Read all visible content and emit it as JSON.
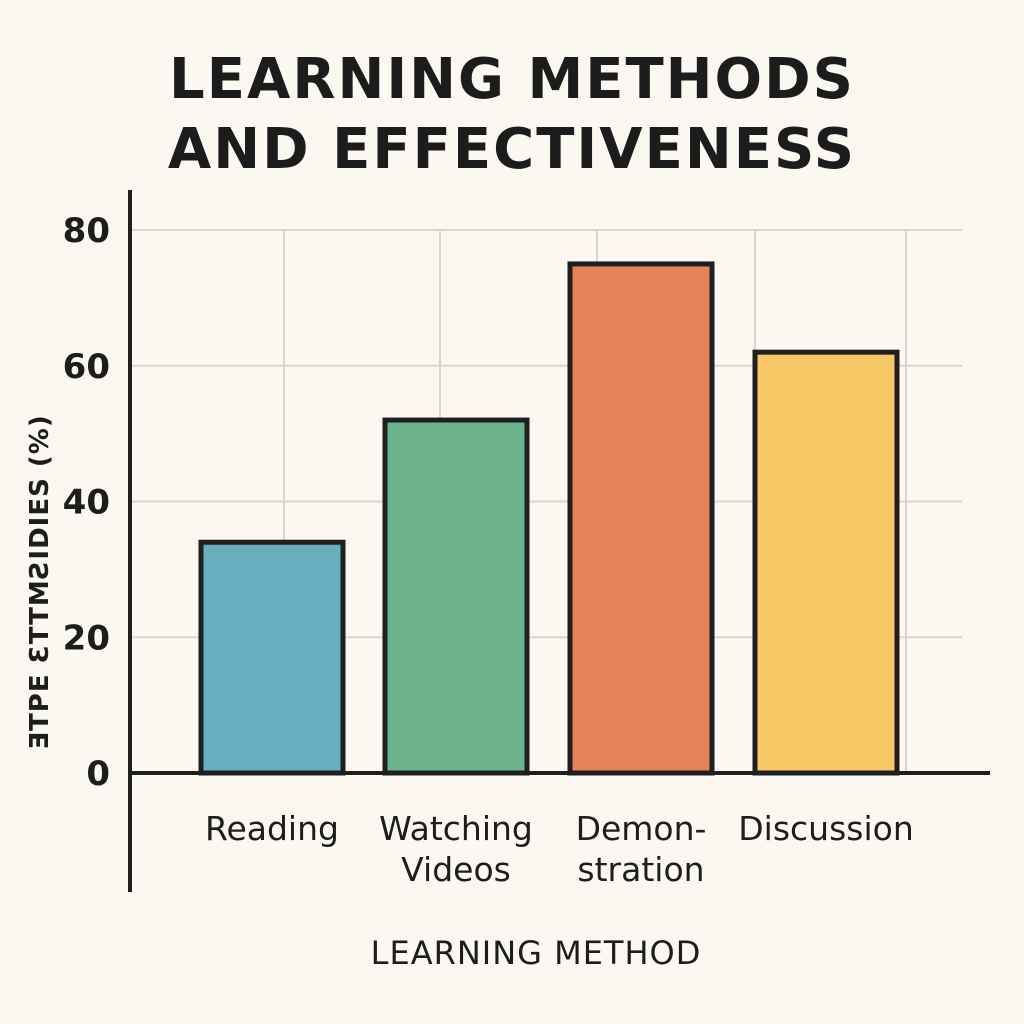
{
  "title_lines": [
    "LEARNING METHODS",
    "AND EFFECTIVENESS"
  ],
  "chart_data": {
    "type": "bar",
    "title": "LEARNING METHODS AND EFFECTIVENESS",
    "xlabel": "LEARNING METHOD",
    "ylabel": "ƎTPE ƐTTMƧIDIES (%)",
    "categories": [
      {
        "name": "Reading",
        "lines": [
          "Reading"
        ]
      },
      {
        "name": "Watching Videos",
        "lines": [
          "Watching",
          "Videos"
        ]
      },
      {
        "name": "Demonstration",
        "lines": [
          "Demon-",
          "stration"
        ]
      },
      {
        "name": "Discussion",
        "lines": [
          "Discussion"
        ]
      }
    ],
    "values": [
      34,
      52,
      75,
      62
    ],
    "colors": [
      "#67afbf",
      "#6cb28c",
      "#e4825a",
      "#f7c865"
    ],
    "ylim": [
      0,
      80
    ],
    "yticks": [
      0,
      20,
      40,
      60,
      80
    ],
    "grid": true,
    "legend": "none"
  }
}
